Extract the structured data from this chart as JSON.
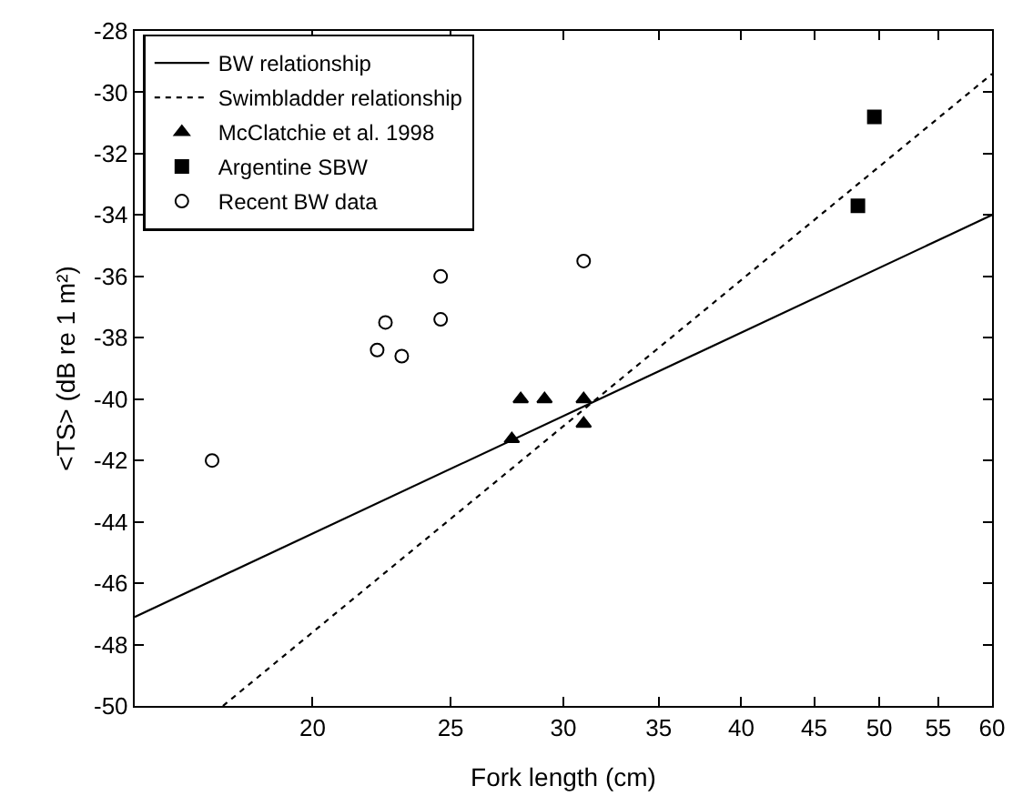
{
  "chart_data": {
    "type": "scatter",
    "xlabel": "Fork length (cm)",
    "ylabel": "<TS> (dB re 1 m²)",
    "log": "x",
    "xlim": [
      15,
      60
    ],
    "xticks": [
      20,
      25,
      30,
      35,
      40,
      45,
      50,
      55,
      60
    ],
    "ylim": [
      -50,
      -28
    ],
    "yticks": [
      -50,
      -48,
      -46,
      -44,
      -42,
      -40,
      -38,
      -36,
      -34,
      -32,
      -30,
      -28
    ],
    "legend": "top left",
    "series": [
      {
        "name": "BW relationship",
        "type": "line",
        "line_style": "solid",
        "marker": "none",
        "color": "#000000",
        "x": [
          15,
          60
        ],
        "values": [
          -47.1,
          -34.0
        ]
      },
      {
        "name": "Swimbladder relationship",
        "type": "line",
        "line_style": "dotted",
        "marker": "none",
        "color": "#000000",
        "x": [
          17.3,
          60
        ],
        "values": [
          -50,
          -29.4
        ]
      },
      {
        "name": "McClatchie et al. 1998",
        "marker": "triangle",
        "color": "#000000",
        "x": [
          27.6,
          28.0,
          29.1,
          31.0,
          31.0
        ],
        "values": [
          -41.3,
          -40.0,
          -40.0,
          -40.0,
          -40.8
        ]
      },
      {
        "name": "Argentine SBW",
        "marker": "square",
        "color": "#000000",
        "x": [
          48.3,
          49.6
        ],
        "values": [
          -33.7,
          -30.8
        ]
      },
      {
        "name": "Recent BW data",
        "marker": "circle-open",
        "color": "#000000",
        "x": [
          17.0,
          22.2,
          22.5,
          23.1,
          24.6,
          24.6,
          31.0
        ],
        "values": [
          -42.0,
          -38.4,
          -37.5,
          -38.6,
          -36.0,
          -37.4,
          -35.5
        ]
      }
    ]
  }
}
